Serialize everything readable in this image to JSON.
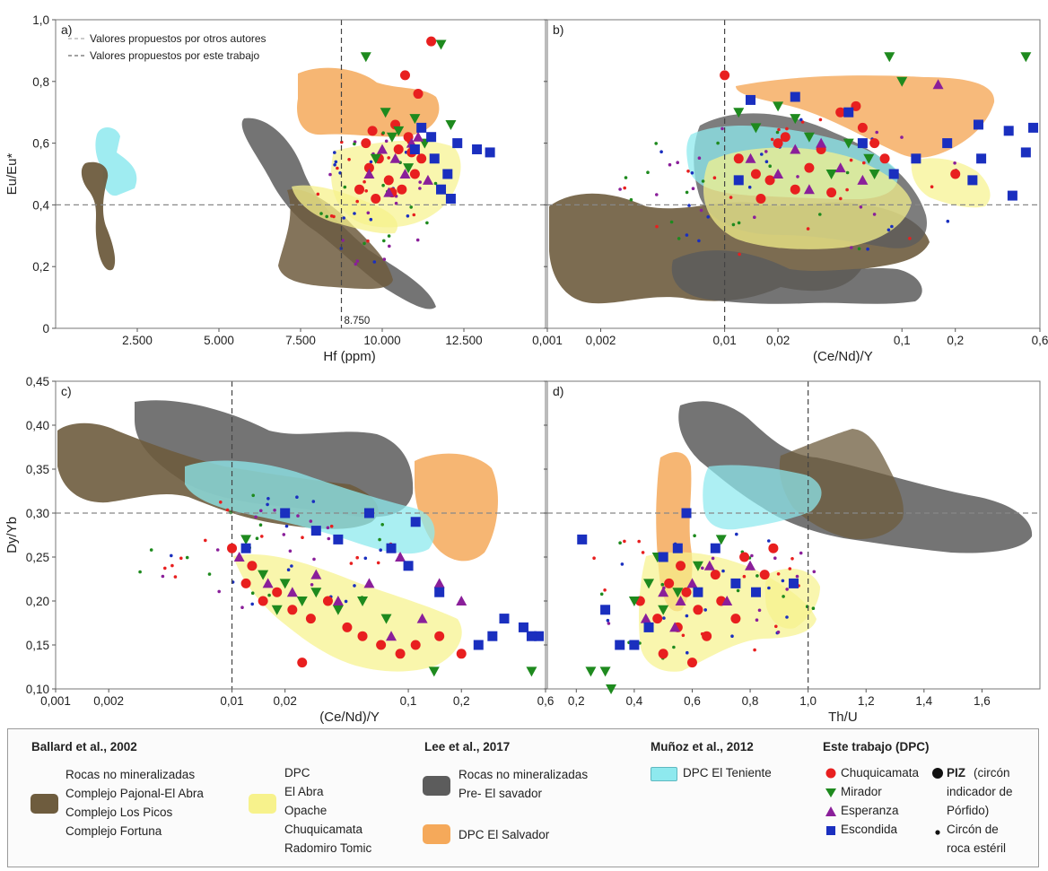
{
  "colors": {
    "ballard_brown": "#6e5c3e",
    "ballard_yellow": "#f7f28c",
    "lee_gray": "#5c5c5c",
    "lee_orange": "#f5a95a",
    "munoz_cyan": "#8ee9ee",
    "chuquicamata": "#e81f1f",
    "mirador": "#1e8a1e",
    "esperanza": "#8a1f9a",
    "escondida": "#1a2fbf"
  },
  "chart_data": [
    {
      "type": "scatter",
      "panel": "a)",
      "xlabel": "Hf (ppm)",
      "ylabel": "Eu/Eu*",
      "xlim": [
        0,
        15000
      ],
      "ylim": [
        0,
        1.0
      ],
      "xticks": [
        "2.500",
        "5.000",
        "7.500",
        "10.000",
        "12.500"
      ],
      "yticks": [
        "0",
        "0,2",
        "0,4",
        "0,6",
        "0,8",
        "1,0"
      ],
      "threshold_x": 8750,
      "threshold_x_label": "8.750",
      "threshold_y": 0.4,
      "annotations": [
        "Valores propuestos por otros autores",
        "Valores propuestos por este trabajo"
      ],
      "series": [
        {
          "name": "Chuquicamata",
          "points": [
            [
              9300,
              0.45
            ],
            [
              9600,
              0.52
            ],
            [
              9900,
              0.55
            ],
            [
              10200,
              0.48
            ],
            [
              10500,
              0.58
            ],
            [
              10800,
              0.62
            ],
            [
              11000,
              0.5
            ],
            [
              9800,
              0.42
            ],
            [
              10400,
              0.66
            ],
            [
              11200,
              0.55
            ],
            [
              9500,
              0.6
            ],
            [
              10600,
              0.45
            ],
            [
              10700,
              0.82
            ],
            [
              11500,
              0.93
            ],
            [
              11100,
              0.76
            ],
            [
              9700,
              0.64
            ],
            [
              10300,
              0.44
            ],
            [
              10900,
              0.57
            ]
          ]
        },
        {
          "name": "Mirador",
          "points": [
            [
              9500,
              0.88
            ],
            [
              10100,
              0.7
            ],
            [
              10500,
              0.64
            ],
            [
              11000,
              0.68
            ],
            [
              11300,
              0.6
            ],
            [
              11800,
              0.92
            ],
            [
              12100,
              0.66
            ],
            [
              9800,
              0.55
            ],
            [
              10800,
              0.52
            ],
            [
              10300,
              0.62
            ]
          ]
        },
        {
          "name": "Esperanza",
          "points": [
            [
              9600,
              0.5
            ],
            [
              10000,
              0.58
            ],
            [
              10400,
              0.55
            ],
            [
              10700,
              0.5
            ],
            [
              11100,
              0.62
            ],
            [
              11400,
              0.48
            ],
            [
              10200,
              0.44
            ],
            [
              10900,
              0.6
            ]
          ]
        },
        {
          "name": "Escondida",
          "points": [
            [
              11200,
              0.65
            ],
            [
              11600,
              0.55
            ],
            [
              12000,
              0.5
            ],
            [
              12300,
              0.6
            ],
            [
              11800,
              0.45
            ],
            [
              11500,
              0.62
            ],
            [
              12900,
              0.58
            ],
            [
              13300,
              0.57
            ],
            [
              11000,
              0.58
            ],
            [
              12100,
              0.42
            ]
          ]
        }
      ]
    },
    {
      "type": "scatter",
      "panel": "b)",
      "xlabel": "(Ce/Nd)/Y",
      "ylabel": "",
      "xscale": "log",
      "xlim": [
        0.001,
        0.6
      ],
      "ylim": [
        0,
        1.0
      ],
      "xticks": [
        "0,001",
        "0,002",
        "0,01",
        "0,02",
        "0,1",
        "0,2",
        "0,6"
      ],
      "threshold_x": 0.01,
      "threshold_y": 0.4,
      "series": [
        {
          "name": "Chuquicamata",
          "points": [
            [
              0.01,
              0.82
            ],
            [
              0.012,
              0.55
            ],
            [
              0.015,
              0.5
            ],
            [
              0.018,
              0.48
            ],
            [
              0.02,
              0.6
            ],
            [
              0.025,
              0.45
            ],
            [
              0.03,
              0.52
            ],
            [
              0.035,
              0.58
            ],
            [
              0.045,
              0.7
            ],
            [
              0.055,
              0.72
            ],
            [
              0.06,
              0.65
            ],
            [
              0.07,
              0.6
            ],
            [
              0.08,
              0.55
            ],
            [
              0.016,
              0.42
            ],
            [
              0.022,
              0.62
            ],
            [
              0.04,
              0.44
            ],
            [
              0.2,
              0.5
            ]
          ]
        },
        {
          "name": "Mirador",
          "points": [
            [
              0.012,
              0.7
            ],
            [
              0.015,
              0.65
            ],
            [
              0.02,
              0.72
            ],
            [
              0.025,
              0.68
            ],
            [
              0.03,
              0.62
            ],
            [
              0.05,
              0.6
            ],
            [
              0.065,
              0.55
            ],
            [
              0.085,
              0.88
            ],
            [
              0.1,
              0.8
            ],
            [
              0.5,
              0.88
            ],
            [
              0.04,
              0.5
            ],
            [
              0.07,
              0.5
            ]
          ]
        },
        {
          "name": "Esperanza",
          "points": [
            [
              0.014,
              0.55
            ],
            [
              0.02,
              0.5
            ],
            [
              0.025,
              0.58
            ],
            [
              0.035,
              0.6
            ],
            [
              0.045,
              0.52
            ],
            [
              0.06,
              0.48
            ],
            [
              0.16,
              0.79
            ],
            [
              0.03,
              0.45
            ]
          ]
        },
        {
          "name": "Escondida",
          "points": [
            [
              0.014,
              0.74
            ],
            [
              0.025,
              0.75
            ],
            [
              0.05,
              0.7
            ],
            [
              0.06,
              0.6
            ],
            [
              0.09,
              0.5
            ],
            [
              0.12,
              0.55
            ],
            [
              0.18,
              0.6
            ],
            [
              0.25,
              0.48
            ],
            [
              0.27,
              0.66
            ],
            [
              0.4,
              0.64
            ],
            [
              0.5,
              0.57
            ],
            [
              0.55,
              0.65
            ],
            [
              0.42,
              0.43
            ],
            [
              0.28,
              0.55
            ],
            [
              0.012,
              0.48
            ]
          ]
        }
      ]
    },
    {
      "type": "scatter",
      "panel": "c)",
      "xlabel": "(Ce/Nd)/Y",
      "ylabel": "Dy/Yb",
      "xscale": "log",
      "xlim": [
        0.001,
        0.6
      ],
      "ylim": [
        0.1,
        0.45
      ],
      "xticks": [
        "0,001",
        "0,002",
        "0,01",
        "0,02",
        "0,1",
        "0,2",
        "0,6"
      ],
      "yticks": [
        "0,10",
        "0,15",
        "0,20",
        "0,25",
        "0,30",
        "0,35",
        "0,40",
        "0,45"
      ],
      "threshold_x": 0.01,
      "threshold_y": 0.3,
      "series": [
        {
          "name": "Chuquicamata",
          "points": [
            [
              0.01,
              0.26
            ],
            [
              0.012,
              0.22
            ],
            [
              0.015,
              0.2
            ],
            [
              0.018,
              0.21
            ],
            [
              0.022,
              0.19
            ],
            [
              0.028,
              0.18
            ],
            [
              0.035,
              0.2
            ],
            [
              0.045,
              0.17
            ],
            [
              0.055,
              0.16
            ],
            [
              0.07,
              0.15
            ],
            [
              0.09,
              0.14
            ],
            [
              0.11,
              0.15
            ],
            [
              0.025,
              0.13
            ],
            [
              0.15,
              0.16
            ],
            [
              0.2,
              0.14
            ],
            [
              0.013,
              0.24
            ]
          ]
        },
        {
          "name": "Mirador",
          "points": [
            [
              0.012,
              0.27
            ],
            [
              0.015,
              0.23
            ],
            [
              0.02,
              0.22
            ],
            [
              0.025,
              0.2
            ],
            [
              0.03,
              0.21
            ],
            [
              0.04,
              0.19
            ],
            [
              0.055,
              0.2
            ],
            [
              0.075,
              0.18
            ],
            [
              0.14,
              0.12
            ],
            [
              0.5,
              0.12
            ],
            [
              0.018,
              0.19
            ]
          ]
        },
        {
          "name": "Esperanza",
          "points": [
            [
              0.011,
              0.25
            ],
            [
              0.016,
              0.22
            ],
            [
              0.022,
              0.21
            ],
            [
              0.03,
              0.23
            ],
            [
              0.04,
              0.2
            ],
            [
              0.06,
              0.22
            ],
            [
              0.09,
              0.25
            ],
            [
              0.12,
              0.18
            ],
            [
              0.15,
              0.22
            ],
            [
              0.2,
              0.2
            ],
            [
              0.08,
              0.16
            ]
          ]
        },
        {
          "name": "Escondida",
          "points": [
            [
              0.012,
              0.26
            ],
            [
              0.02,
              0.3
            ],
            [
              0.03,
              0.28
            ],
            [
              0.04,
              0.27
            ],
            [
              0.06,
              0.3
            ],
            [
              0.08,
              0.26
            ],
            [
              0.1,
              0.24
            ],
            [
              0.11,
              0.29
            ],
            [
              0.15,
              0.21
            ],
            [
              0.3,
              0.16
            ],
            [
              0.35,
              0.18
            ],
            [
              0.45,
              0.17
            ],
            [
              0.55,
              0.16
            ],
            [
              0.25,
              0.15
            ],
            [
              0.5,
              0.16
            ]
          ]
        }
      ]
    },
    {
      "type": "scatter",
      "panel": "d)",
      "xlabel": "Th/U",
      "ylabel": "",
      "xlim": [
        0.1,
        1.8
      ],
      "ylim": [
        0.1,
        0.45
      ],
      "xticks": [
        "0,2",
        "0,4",
        "0,6",
        "0,8",
        "1,0",
        "1,2",
        "1,4",
        "1,6"
      ],
      "threshold_x": 1.0,
      "threshold_y": 0.3,
      "series": [
        {
          "name": "Chuquicamata",
          "points": [
            [
              0.42,
              0.2
            ],
            [
              0.48,
              0.18
            ],
            [
              0.52,
              0.22
            ],
            [
              0.55,
              0.17
            ],
            [
              0.58,
              0.21
            ],
            [
              0.62,
              0.19
            ],
            [
              0.65,
              0.16
            ],
            [
              0.7,
              0.2
            ],
            [
              0.75,
              0.18
            ],
            [
              0.78,
              0.25
            ],
            [
              0.85,
              0.23
            ],
            [
              0.88,
              0.26
            ],
            [
              0.5,
              0.14
            ],
            [
              0.6,
              0.13
            ],
            [
              0.56,
              0.24
            ],
            [
              0.68,
              0.23
            ]
          ]
        },
        {
          "name": "Mirador",
          "points": [
            [
              0.25,
              0.12
            ],
            [
              0.3,
              0.12
            ],
            [
              0.32,
              0.1
            ],
            [
              0.4,
              0.2
            ],
            [
              0.45,
              0.22
            ],
            [
              0.5,
              0.19
            ],
            [
              0.55,
              0.21
            ],
            [
              0.62,
              0.24
            ],
            [
              0.7,
              0.27
            ],
            [
              0.48,
              0.25
            ]
          ]
        },
        {
          "name": "Esperanza",
          "points": [
            [
              0.44,
              0.18
            ],
            [
              0.5,
              0.21
            ],
            [
              0.56,
              0.2
            ],
            [
              0.6,
              0.22
            ],
            [
              0.66,
              0.24
            ],
            [
              0.72,
              0.2
            ],
            [
              0.8,
              0.24
            ],
            [
              0.54,
              0.17
            ]
          ]
        },
        {
          "name": "Escondida",
          "points": [
            [
              0.22,
              0.27
            ],
            [
              0.3,
              0.19
            ],
            [
              0.35,
              0.15
            ],
            [
              0.4,
              0.15
            ],
            [
              0.45,
              0.17
            ],
            [
              0.5,
              0.25
            ],
            [
              0.55,
              0.26
            ],
            [
              0.62,
              0.21
            ],
            [
              0.75,
              0.22
            ],
            [
              0.82,
              0.21
            ],
            [
              0.95,
              0.22
            ],
            [
              0.58,
              0.3
            ],
            [
              0.68,
              0.26
            ]
          ]
        }
      ]
    }
  ],
  "legend": {
    "ballard": {
      "title": "Ballard et al., 2002",
      "brown_lines": [
        "Rocas no mineralizadas",
        "Complejo Pajonal-El Abra",
        "Complejo Los Picos",
        "Complejo Fortuna"
      ],
      "yellow_lines": [
        "DPC",
        "El Abra",
        "Opache",
        "Chuquicamata",
        "Radomiro Tomic"
      ]
    },
    "lee": {
      "title": "Lee et al., 2017",
      "gray_lines": [
        "Rocas no mineralizadas",
        "Pre- El savador"
      ],
      "orange_label": "DPC El Salvador"
    },
    "munoz": {
      "title": "Muñoz et al., 2012",
      "cyan_label": "DPC El Teniente"
    },
    "este": {
      "title": "Este trabajo (DPC)",
      "chuquicamata": "Chuquicamata",
      "mirador": "Mirador",
      "esperanza": "Esperanza",
      "escondida": "Escondida",
      "piz_bold": "PIZ",
      "piz_lines": [
        "(circón",
        "indicador de",
        "Pórfido)"
      ],
      "esteril_lines": [
        "Circón de",
        "roca estéril"
      ]
    }
  }
}
